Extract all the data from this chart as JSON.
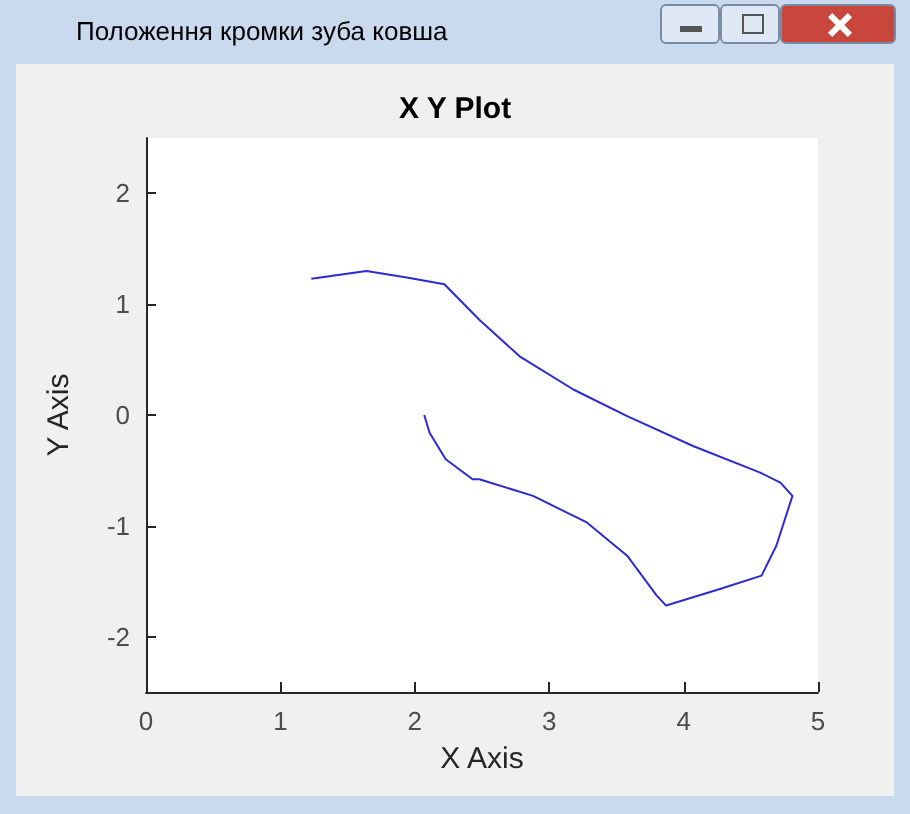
{
  "chart_data": {
    "type": "line",
    "title": "X Y Plot",
    "xlabel": "X Axis",
    "ylabel": "Y Axis",
    "annotations": [
      "Положення кромки зуба ковша"
    ],
    "x": [
      1.23,
      1.64,
      1.94,
      2.22,
      2.48,
      2.78,
      3.18,
      3.58,
      4.07,
      4.57,
      4.72,
      4.81,
      4.69,
      4.58,
      4.27,
      3.87,
      3.8,
      3.58,
      3.28,
      2.88,
      2.48,
      2.43,
      2.23,
      2.11,
      2.07
    ],
    "series": [
      {
        "color": "#2b2bd0",
        "values": [
          1.23,
          1.3,
          1.24,
          1.18,
          0.86,
          0.53,
          0.23,
          -0.01,
          -0.28,
          -0.52,
          -0.61,
          -0.73,
          -1.18,
          -1.45,
          -1.57,
          -1.72,
          -1.63,
          -1.27,
          -0.97,
          -0.73,
          -0.58,
          -0.58,
          -0.4,
          -0.16,
          0
        ]
      }
    ],
    "xlim": [
      0,
      5
    ],
    "xticks": [
      0,
      1,
      2,
      3,
      4,
      5
    ],
    "ylim": [
      -2.5,
      2.5
    ],
    "yticks": [
      -2,
      -1,
      0,
      1,
      2
    ],
    "grid": false,
    "marker": "none",
    "line_style": "solid"
  }
}
